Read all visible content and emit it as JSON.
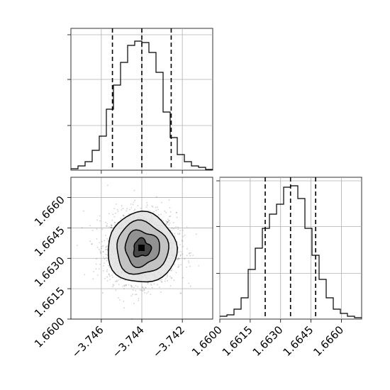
{
  "chart_data": [
    {
      "type": "histogram",
      "panel": "marginal-x",
      "xlim": [
        -3.7475,
        -3.7405
      ],
      "bin_edges": [
        -3.7475,
        -3.74715,
        -3.7468,
        -3.74645,
        -3.7461,
        -3.74575,
        -3.7454,
        -3.74505,
        -3.7447,
        -3.74435,
        -3.744,
        -3.74365,
        -3.7433,
        -3.74295,
        -3.7426,
        -3.74225,
        -3.7419,
        -3.74155,
        -3.7412,
        -3.74085,
        -3.7405
      ],
      "counts": [
        0.01,
        0.03,
        0.06,
        0.14,
        0.24,
        0.43,
        0.6,
        0.76,
        0.88,
        0.91,
        0.9,
        0.83,
        0.69,
        0.41,
        0.23,
        0.11,
        0.06,
        0.03,
        0.02,
        0.005
      ],
      "quantiles": [
        -3.74545,
        -3.744,
        -3.74255
      ],
      "grid": true
    },
    {
      "type": "histogram",
      "panel": "marginal-y",
      "xlim": [
        1.66,
        1.667
      ],
      "xticks": [
        1.66,
        1.6615,
        1.663,
        1.6645,
        1.666
      ],
      "xtick_labels": [
        "1.6600",
        "1.6615",
        "1.6630",
        "1.6645",
        "1.6660"
      ],
      "bin_edges": [
        1.66,
        1.66035,
        1.6607,
        1.66105,
        1.6614,
        1.66175,
        1.6621,
        1.66245,
        1.6628,
        1.66315,
        1.6635,
        1.66385,
        1.6642,
        1.66455,
        1.6649,
        1.66525,
        1.6656,
        1.66595,
        1.6663,
        1.66665,
        1.667
      ],
      "counts": [
        0.02,
        0.03,
        0.07,
        0.15,
        0.35,
        0.5,
        0.64,
        0.74,
        0.81,
        0.93,
        0.94,
        0.85,
        0.64,
        0.45,
        0.28,
        0.15,
        0.07,
        0.04,
        0.02,
        0.01
      ],
      "quantiles": [
        1.66224,
        1.66349,
        1.66473
      ],
      "grid": true
    },
    {
      "type": "scatter",
      "panel": "joint",
      "xlim": [
        -3.7475,
        -3.7405
      ],
      "ylim": [
        1.66,
        1.667
      ],
      "xticks": [
        -3.746,
        -3.744,
        -3.742
      ],
      "xtick_labels": [
        "−3.746",
        "−3.744",
        "−3.742"
      ],
      "yticks": [
        1.66,
        1.6615,
        1.663,
        1.6645,
        1.666
      ],
      "ytick_labels": [
        "1.6600",
        "1.6615",
        "1.6630",
        "1.6645",
        "1.6660"
      ],
      "center": [
        -3.744,
        1.6635
      ],
      "std": [
        0.00085,
        0.00087
      ],
      "n_points": 2200,
      "contour_levels": [
        "0.5 sigma",
        "1 sigma",
        "1.5 sigma",
        "2 sigma"
      ],
      "grid": true
    }
  ]
}
